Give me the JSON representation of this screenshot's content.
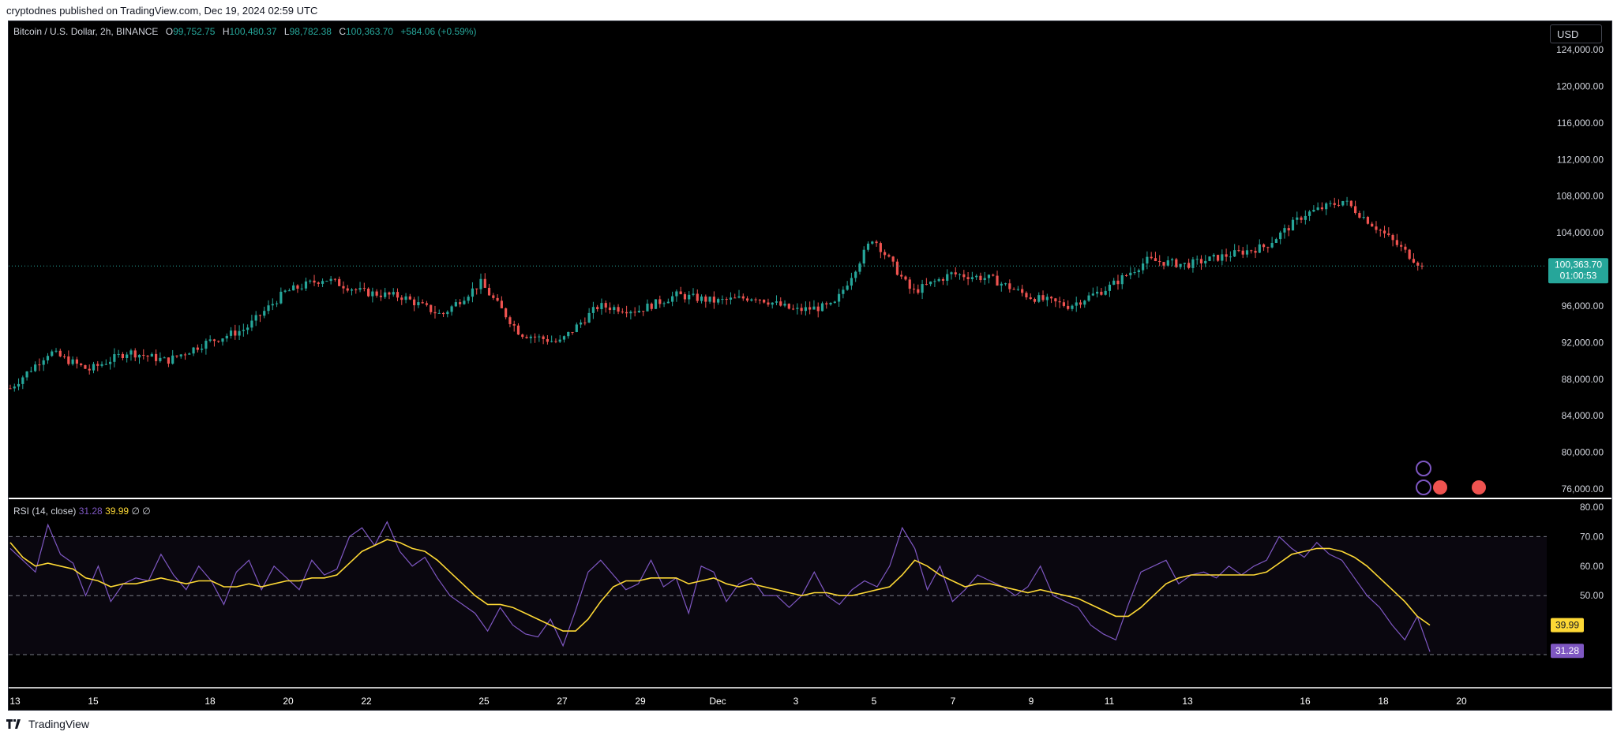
{
  "header": {
    "published": "cryptodnes published on TradingView.com, Dec 19, 2024 02:59 UTC"
  },
  "symbol": {
    "title": "Bitcoin / U.S. Dollar, 2h, BINANCE",
    "open_label": "O",
    "open": "99,752.75",
    "high_label": "H",
    "high": "100,480.37",
    "low_label": "L",
    "low": "98,782.38",
    "close_label": "C",
    "close": "100,363.70",
    "change": "+584.06 (+0.59%)"
  },
  "currency": "USD",
  "price_axis": {
    "ticks": [
      "124,000.00",
      "120,000.00",
      "116,000.00",
      "112,000.00",
      "108,000.00",
      "104,000.00",
      "96,000.00",
      "92,000.00",
      "88,000.00",
      "84,000.00",
      "80,000.00",
      "76,000.00"
    ],
    "last_price": "100,363.70",
    "countdown": "01:00:53"
  },
  "rsi": {
    "label": "RSI (14, close)",
    "rsi_value": "31.28",
    "ma_value": "39.99",
    "extra1": "∅",
    "extra2": "∅",
    "ticks": [
      "80.00",
      "70.00",
      "60.00",
      "50.00"
    ]
  },
  "time_axis": [
    "13",
    "15",
    "18",
    "20",
    "22",
    "25",
    "27",
    "29",
    "Dec",
    "3",
    "5",
    "7",
    "9",
    "11",
    "13",
    "16",
    "18",
    "20"
  ],
  "footer": {
    "brand": "TradingView"
  },
  "colors": {
    "up": "#26a69a",
    "down": "#ef5350",
    "rsi": "#7e57c2",
    "rsi_ma": "#fdd835",
    "background": "#000000"
  },
  "chart_data": [
    {
      "type": "candlestick",
      "title": "Bitcoin / U.S. Dollar, 2h, BINANCE",
      "x_range": [
        "Nov 13",
        "Dec 19"
      ],
      "ylim": [
        76000,
        124000
      ],
      "price_path": [
        [
          "Nov 13",
          87000
        ],
        [
          "Nov 14",
          91000
        ],
        [
          "Nov 15",
          89000
        ],
        [
          "Nov 16",
          91000
        ],
        [
          "Nov 18",
          90000
        ],
        [
          "Nov 19",
          92000
        ],
        [
          "Nov 20",
          93500
        ],
        [
          "Nov 21",
          97500
        ],
        [
          "Nov 22",
          99000
        ],
        [
          "Nov 23",
          97500
        ],
        [
          "Nov 24",
          97000
        ],
        [
          "Nov 25",
          95000
        ],
        [
          "Nov 25b",
          98500
        ],
        [
          "Nov 26",
          93000
        ],
        [
          "Nov 27",
          92000
        ],
        [
          "Nov 28",
          96000
        ],
        [
          "Nov 29",
          95500
        ],
        [
          "Nov 30",
          97200
        ],
        [
          "Dec 1",
          96500
        ],
        [
          "Dec 2",
          97000
        ],
        [
          "Dec 3",
          95500
        ],
        [
          "Dec 4",
          96000
        ],
        [
          "Dec 5",
          103500
        ],
        [
          "Dec 6",
          97500
        ],
        [
          "Dec 7",
          99500
        ],
        [
          "Dec 8",
          99000
        ],
        [
          "Dec 9",
          97000
        ],
        [
          "Dec 10",
          96000
        ],
        [
          "Dec 11",
          98000
        ],
        [
          "Dec 12",
          101000
        ],
        [
          "Dec 13",
          100500
        ],
        [
          "Dec 14",
          101500
        ],
        [
          "Dec 15",
          102500
        ],
        [
          "Dec 16",
          106000
        ],
        [
          "Dec 17",
          107500
        ],
        [
          "Dec 18",
          104000
        ],
        [
          "Dec 19",
          100363.7
        ]
      ],
      "last_price": 100363.7
    },
    {
      "type": "line",
      "title": "RSI (14, close)",
      "ylim": [
        25,
        80
      ],
      "levels": [
        70,
        50,
        30
      ],
      "series": [
        {
          "name": "RSI",
          "values": [
            66,
            62,
            58,
            74,
            64,
            61,
            50,
            60,
            48,
            54,
            56,
            55,
            64,
            57,
            52,
            60,
            55,
            47,
            58,
            62,
            52,
            60,
            56,
            52,
            62,
            57,
            59,
            70,
            73,
            67,
            75,
            65,
            60,
            63,
            56,
            50,
            47,
            44,
            38,
            46,
            40,
            37,
            36,
            42,
            33,
            45,
            58,
            62,
            57,
            52,
            54,
            62,
            53,
            56,
            44,
            60,
            58,
            48,
            54,
            56,
            50,
            50,
            46,
            50,
            58,
            50,
            47,
            52,
            55,
            53,
            60,
            73,
            66,
            52,
            60,
            48,
            52,
            57,
            55,
            53,
            50,
            53,
            60,
            50,
            48,
            46,
            40,
            37,
            35,
            47,
            58,
            60,
            62,
            54,
            57,
            58,
            56,
            60,
            57,
            60,
            62,
            70,
            66,
            63,
            68,
            64,
            62,
            56,
            50,
            46,
            40,
            35,
            43,
            31
          ]
        },
        {
          "name": "RSI-based MA",
          "values": [
            68,
            63,
            60,
            61,
            60,
            59,
            56,
            55,
            53,
            54,
            54,
            55,
            56,
            55,
            54,
            55,
            55,
            53,
            53,
            54,
            53,
            54,
            55,
            55,
            56,
            56,
            57,
            61,
            65,
            67,
            69,
            68,
            66,
            65,
            62,
            58,
            54,
            50,
            47,
            47,
            46,
            44,
            42,
            40,
            38,
            38,
            42,
            48,
            53,
            55,
            55,
            56,
            56,
            56,
            54,
            55,
            56,
            54,
            53,
            54,
            53,
            52,
            51,
            50,
            51,
            51,
            50,
            50,
            51,
            52,
            53,
            57,
            62,
            60,
            57,
            55,
            53,
            54,
            54,
            53,
            52,
            51,
            52,
            51,
            50,
            49,
            47,
            45,
            43,
            43,
            46,
            50,
            54,
            56,
            57,
            57,
            57,
            57,
            57,
            57,
            58,
            61,
            64,
            65,
            66,
            66,
            65,
            63,
            60,
            56,
            52,
            48,
            43,
            39.99
          ]
        }
      ]
    }
  ]
}
